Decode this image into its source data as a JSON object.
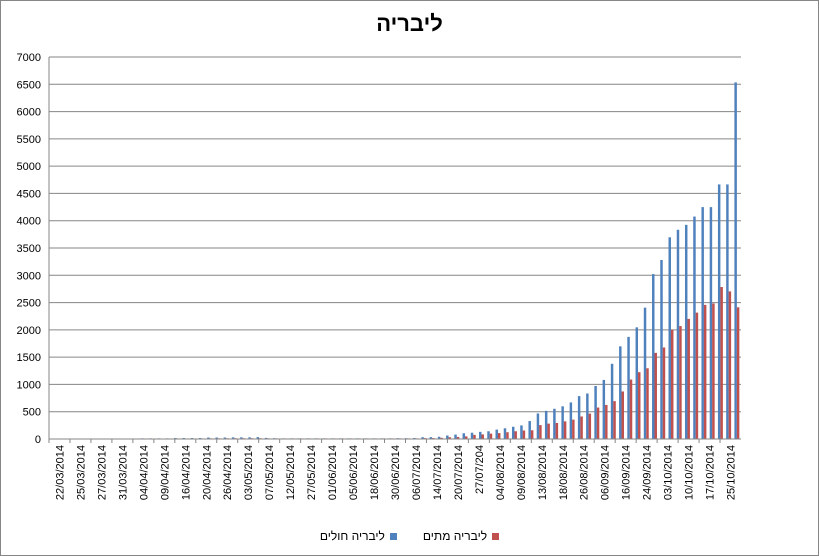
{
  "chart_data": {
    "type": "bar",
    "title": "ליבריה",
    "xlabel": "",
    "ylabel": "",
    "ylim": [
      0,
      7000
    ],
    "yticks": [
      0,
      500,
      1000,
      1500,
      2000,
      2500,
      3000,
      3500,
      4000,
      4500,
      5000,
      5500,
      6000,
      6500,
      7000
    ],
    "grid": true,
    "legend_position": "bottom",
    "tick_labels": [
      "22/03/2014",
      "25/03/2014",
      "27/03/2014",
      "31/03/2014",
      "04/04/2014",
      "09/04/2014",
      "16/04/2014",
      "20/04/2014",
      "26/04/2014",
      "03/05/2014",
      "07/05/2014",
      "12/05/2014",
      "27/05/2014",
      "01/06/2014",
      "05/06/2014",
      "18/06/2014",
      "30/06/2014",
      "06/07/2014",
      "14/07/2014",
      "20/07/2014",
      "27/07/204",
      "04/08/2014",
      "09/08/2014",
      "13/08/2014",
      "18/08/2014",
      "26/08/2014",
      "06/09/2014",
      "16/09/2014",
      "24/09/2014",
      "03/10/2014",
      "10/10/2014",
      "17/10/2014",
      "25/10/2014"
    ],
    "series": [
      {
        "name": "ליבריה חולים",
        "color": "#4f81bd",
        "values": [
          0,
          0,
          0,
          0,
          0,
          8,
          8,
          8,
          8,
          8,
          8,
          12,
          12,
          12,
          12,
          18,
          18,
          18,
          18,
          27,
          27,
          27,
          30,
          30,
          30,
          35,
          20,
          15,
          12,
          12,
          12,
          12,
          12,
          12,
          12,
          12,
          12,
          12,
          12,
          12,
          12,
          12,
          15,
          15,
          18,
          33,
          34,
          41,
          64,
          81,
          105,
          115,
          131,
          142,
          172,
          196,
          224,
          249,
          329,
          468,
          516,
          554,
          599,
          670,
          786,
          834,
          972,
          1082,
          1378,
          1698,
          1871,
          2046,
          2407,
          3022,
          3280,
          3696,
          3834,
          3924,
          4076,
          4249,
          4249,
          4665,
          4665,
          6535
        ]
      },
      {
        "name": "ליבריה מתים",
        "color": "#c0504d",
        "values": [
          0,
          0,
          0,
          0,
          0,
          6,
          6,
          6,
          7,
          7,
          7,
          8,
          8,
          8,
          8,
          10,
          10,
          10,
          10,
          12,
          12,
          13,
          14,
          14,
          14,
          14,
          12,
          11,
          11,
          11,
          11,
          11,
          11,
          11,
          11,
          11,
          11,
          11,
          11,
          11,
          11,
          11,
          11,
          11,
          11,
          16,
          17,
          22,
          32,
          37,
          48,
          75,
          84,
          98,
          109,
          124,
          142,
          156,
          160,
          255,
          282,
          294,
          323,
          355,
          413,
          466,
          576,
          624,
          694,
          871,
          1089,
          1224,
          1296,
          1578,
          1677,
          2001,
          2069,
          2201,
          2316,
          2458,
          2484,
          2785,
          2705,
          2413
        ]
      }
    ]
  }
}
